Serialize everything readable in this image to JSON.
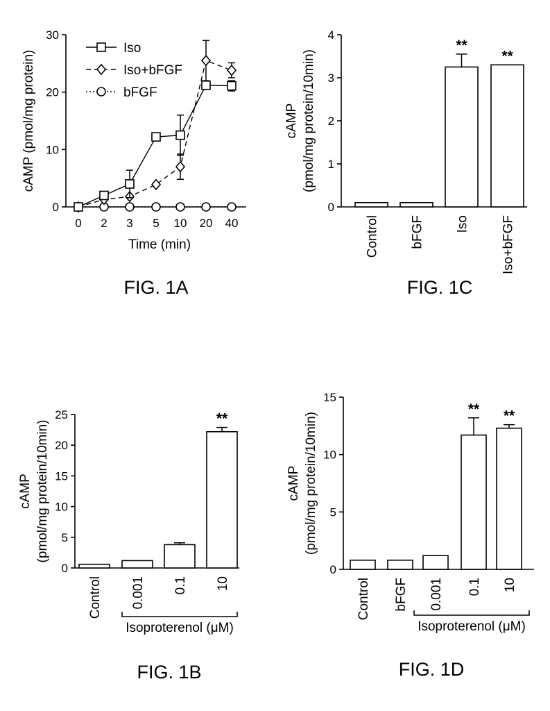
{
  "chart_data": [
    {
      "id": "fig1a",
      "type": "line",
      "figure_label": "FIG. 1A",
      "ylabel": "cAMP (pmol/mg protein)",
      "xlabel": "Time (min)",
      "categories": [
        "0",
        "2",
        "3",
        "5",
        "10",
        "20",
        "40"
      ],
      "ylim": [
        0,
        30
      ],
      "yticks": [
        0,
        10,
        20,
        30
      ],
      "legend_position": "top-left",
      "series": [
        {
          "name": "Iso",
          "marker": "square",
          "dash": "solid",
          "values": [
            0,
            2,
            4,
            12.2,
            12.5,
            21.2,
            21.1
          ],
          "errors": [
            0,
            0,
            2.4,
            0,
            3.5,
            0,
            0.9
          ]
        },
        {
          "name": "Iso+bFGF",
          "marker": "diamond",
          "dash": "dashed",
          "values": [
            0,
            1.3,
            1.8,
            3.9,
            7,
            25.5,
            23.8
          ],
          "errors": [
            0,
            0,
            0,
            0,
            2.2,
            3.5,
            1.3
          ]
        },
        {
          "name": "bFGF",
          "marker": "circle",
          "dash": "dotted",
          "values": [
            0,
            0,
            0,
            0,
            0,
            0,
            0
          ],
          "errors": [
            0,
            0,
            0,
            0,
            0,
            0,
            0
          ]
        }
      ]
    },
    {
      "id": "fig1c",
      "type": "bar",
      "figure_label": "FIG. 1C",
      "ylabel_line1": "cAMP",
      "ylabel_line2": "(pmol/mg protein/10min)",
      "categories": [
        "Control",
        "bFGF",
        "Iso",
        "Iso+bFGF"
      ],
      "values": [
        0.1,
        0.1,
        3.25,
        3.3
      ],
      "errors": [
        0,
        0,
        0.3,
        0
      ],
      "annotations": [
        "",
        "",
        "**",
        "**"
      ],
      "ylim": [
        0,
        4
      ],
      "yticks": [
        0,
        1,
        2,
        3,
        4
      ]
    },
    {
      "id": "fig1b",
      "type": "bar",
      "figure_label": "FIG. 1B",
      "ylabel_line1": "cAMP",
      "ylabel_line2": "(pmol/mg protein/10min)",
      "categories": [
        "Control",
        "0.001",
        "0.1",
        "10"
      ],
      "values": [
        0.6,
        1.2,
        3.8,
        22.2
      ],
      "errors": [
        0,
        0,
        0.3,
        0.7
      ],
      "annotations": [
        "",
        "",
        "",
        "**"
      ],
      "ylim": [
        0,
        25
      ],
      "yticks": [
        0,
        5,
        10,
        15,
        20,
        25
      ],
      "group_label": "Isoproterenol (μM)",
      "group_from": 1,
      "group_to": 3
    },
    {
      "id": "fig1d",
      "type": "bar",
      "figure_label": "FIG. 1D",
      "ylabel_line1": "cAMP",
      "ylabel_line2": "(pmol/mg protein/10min)",
      "categories": [
        "Control",
        "bFGF",
        "0.001",
        "0.1",
        "10"
      ],
      "values": [
        0.8,
        0.8,
        1.2,
        11.7,
        12.3
      ],
      "errors": [
        0,
        0,
        0,
        1.5,
        0.3
      ],
      "annotations": [
        "",
        "",
        "",
        "**",
        "**"
      ],
      "ylim": [
        0,
        15
      ],
      "yticks": [
        0,
        5,
        10,
        15
      ],
      "group_label": "Isoproterenol (μM)",
      "group_from": 2,
      "group_to": 4
    }
  ]
}
